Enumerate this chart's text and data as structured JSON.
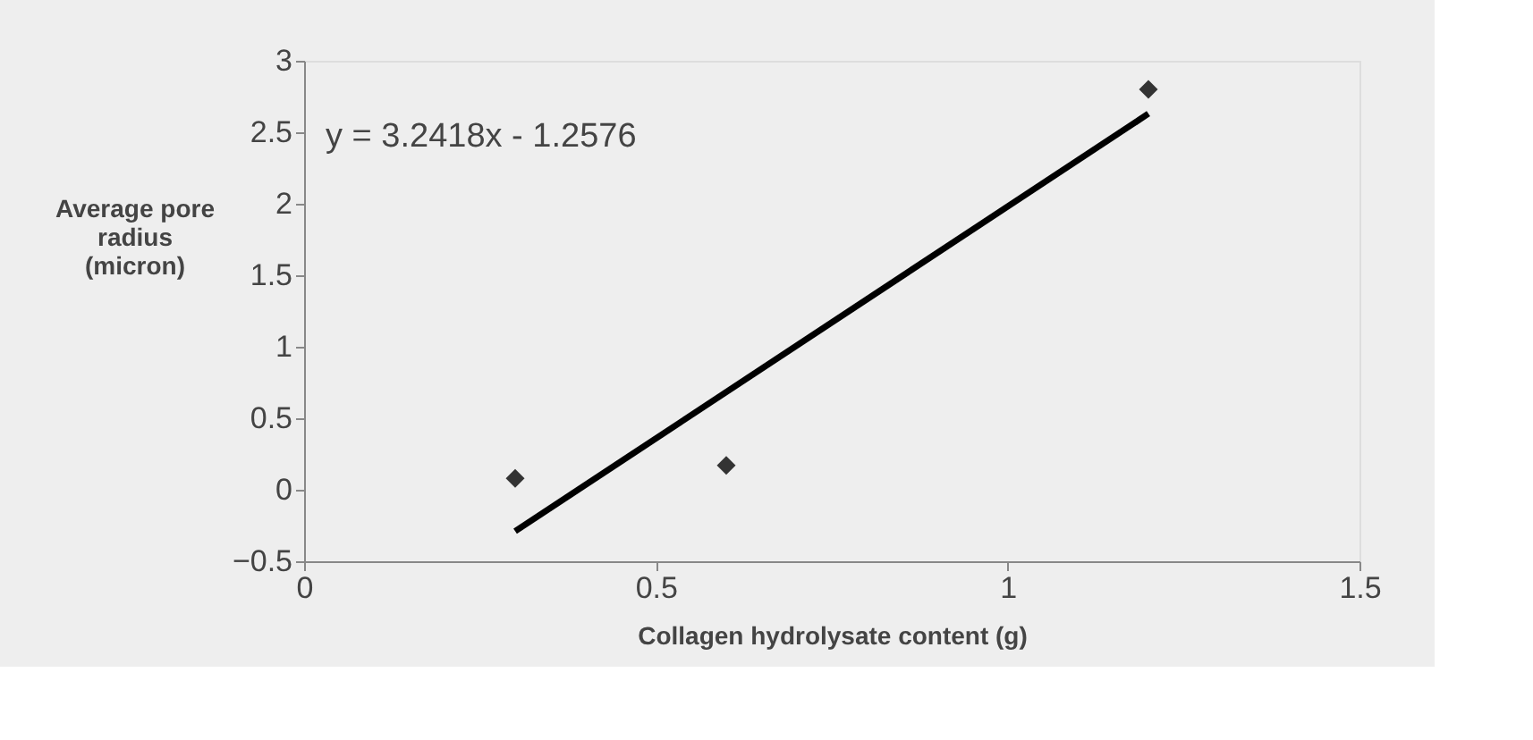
{
  "chart_data": {
    "type": "scatter",
    "xlabel": "Collagen hydrolysate content (g)",
    "ylabel": "Average pore radius (micron)",
    "series": [
      {
        "color": "#333333",
        "marker": "diamond",
        "x": [
          0.3,
          0.6,
          1.2
        ],
        "values": [
          0.08,
          0.17,
          2.8
        ]
      },
      {
        "type": "line",
        "color": "#000000",
        "marker": "none",
        "line_style": "solid",
        "x": [
          0.3,
          1.2
        ],
        "values": [
          -0.29,
          2.63
        ]
      }
    ],
    "annotations": [
      "y = 3.2418x - 1.2576"
    ],
    "xlim": [
      0,
      1.5
    ],
    "xticks": [
      0,
      0.5,
      1,
      1.5
    ],
    "ylim": [
      -0.5,
      3
    ],
    "yticks": [
      -0.5,
      0,
      0.5,
      1,
      1.5,
      2,
      2.5,
      3
    ],
    "grid": false
  }
}
